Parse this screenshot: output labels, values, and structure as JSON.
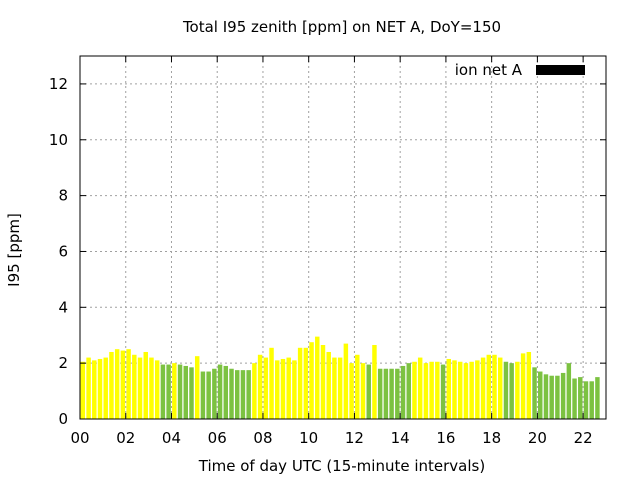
{
  "chart_data": {
    "type": "bar",
    "title": "Total I95 zenith [ppm] on NET A, DoY=150",
    "xlabel": "Time of day UTC (15-minute intervals)",
    "ylabel": "I95 [ppm]",
    "xlim": [
      0,
      23
    ],
    "ylim": [
      0,
      13
    ],
    "x_ticks": [
      "00",
      "02",
      "04",
      "06",
      "08",
      "10",
      "12",
      "14",
      "16",
      "18",
      "20",
      "22"
    ],
    "y_ticks": [
      "0",
      "2",
      "4",
      "6",
      "8",
      "10",
      "12"
    ],
    "grid": true,
    "legend": {
      "label": "ion net A",
      "color": "#000000",
      "position": "top-right"
    },
    "colors": {
      "yellow": "#ffff00",
      "green": "#7cc241"
    },
    "bar_interval_hours": 0.25,
    "values": [
      2.05,
      2.2,
      2.1,
      2.15,
      2.2,
      2.4,
      2.5,
      2.45,
      2.5,
      2.3,
      2.2,
      2.4,
      2.2,
      2.1,
      1.95,
      1.95,
      2.0,
      1.95,
      1.9,
      1.85,
      2.25,
      1.7,
      1.7,
      1.8,
      1.95,
      1.9,
      1.8,
      1.75,
      1.75,
      1.75,
      2.0,
      2.3,
      2.2,
      2.55,
      2.1,
      2.15,
      2.2,
      2.1,
      2.55,
      2.55,
      2.75,
      2.95,
      2.65,
      2.4,
      2.2,
      2.2,
      2.7,
      2.0,
      2.3,
      2.0,
      1.95,
      2.65,
      1.8,
      1.8,
      1.8,
      1.8,
      1.9,
      2.0,
      2.05,
      2.2,
      2.0,
      2.05,
      2.05,
      1.95,
      2.15,
      2.1,
      2.05,
      2.0,
      2.05,
      2.1,
      2.2,
      2.3,
      2.3,
      2.2,
      2.05,
      2.0,
      2.05,
      2.35,
      2.4,
      1.85,
      1.7,
      1.6,
      1.55,
      1.55,
      1.65,
      2.0,
      1.45,
      1.5,
      1.35,
      1.35,
      1.5
    ],
    "bar_colors": [
      "yellow",
      "yellow",
      "yellow",
      "yellow",
      "yellow",
      "yellow",
      "yellow",
      "yellow",
      "yellow",
      "yellow",
      "yellow",
      "yellow",
      "yellow",
      "yellow",
      "green",
      "green",
      "yellow",
      "green",
      "green",
      "green",
      "yellow",
      "green",
      "green",
      "green",
      "green",
      "green",
      "green",
      "green",
      "green",
      "green",
      "yellow",
      "yellow",
      "yellow",
      "yellow",
      "yellow",
      "yellow",
      "yellow",
      "yellow",
      "yellow",
      "yellow",
      "yellow",
      "yellow",
      "yellow",
      "yellow",
      "yellow",
      "yellow",
      "yellow",
      "yellow",
      "yellow",
      "yellow",
      "green",
      "yellow",
      "green",
      "green",
      "green",
      "green",
      "green",
      "green",
      "yellow",
      "yellow",
      "yellow",
      "yellow",
      "yellow",
      "green",
      "yellow",
      "yellow",
      "yellow",
      "yellow",
      "yellow",
      "yellow",
      "yellow",
      "yellow",
      "yellow",
      "yellow",
      "green",
      "green",
      "yellow",
      "yellow",
      "yellow",
      "green",
      "green",
      "green",
      "green",
      "green",
      "green",
      "green",
      "green",
      "green",
      "green",
      "green",
      "green"
    ]
  }
}
